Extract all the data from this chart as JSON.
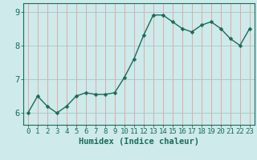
{
  "x": [
    0,
    1,
    2,
    3,
    4,
    5,
    6,
    7,
    8,
    9,
    10,
    11,
    12,
    13,
    14,
    15,
    16,
    17,
    18,
    19,
    20,
    21,
    22,
    23
  ],
  "y": [
    6.0,
    6.5,
    6.2,
    6.0,
    6.2,
    6.5,
    6.6,
    6.55,
    6.55,
    6.6,
    7.05,
    7.6,
    8.3,
    8.9,
    8.9,
    8.7,
    8.5,
    8.4,
    8.6,
    8.7,
    8.5,
    8.2,
    8.0,
    8.5
  ],
  "line_color": "#1a6b5a",
  "marker": "D",
  "marker_size": 2.5,
  "bg_color": "#ceeaea",
  "grid_color_h": "#aacccc",
  "grid_color_v": "#e0aaaa",
  "axis_color": "#1a6b5a",
  "xlabel": "Humidex (Indice chaleur)",
  "ylabel": "",
  "title": "",
  "ylim": [
    5.65,
    9.25
  ],
  "xlim": [
    -0.5,
    23.5
  ],
  "yticks": [
    6,
    7,
    8,
    9
  ],
  "xticks": [
    0,
    1,
    2,
    3,
    4,
    5,
    6,
    7,
    8,
    9,
    10,
    11,
    12,
    13,
    14,
    15,
    16,
    17,
    18,
    19,
    20,
    21,
    22,
    23
  ],
  "xlabel_fontsize": 7.5,
  "tick_fontsize": 6.5
}
